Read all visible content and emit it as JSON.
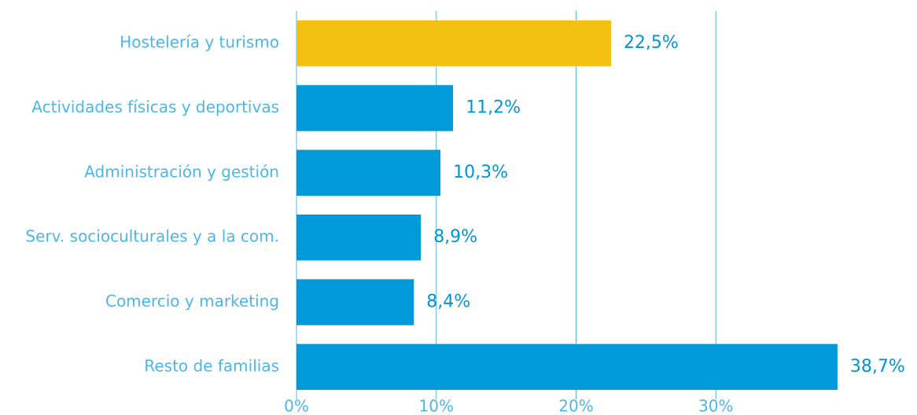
{
  "chart_data": {
    "type": "bar",
    "orientation": "horizontal",
    "categories": [
      "Hostelería y turismo",
      "Actividades físicas y deportivas",
      "Administración y gestión",
      "Serv. socioculturales y a la com.",
      "Comercio y marketing",
      "Resto de familias"
    ],
    "values": [
      22.5,
      11.2,
      10.3,
      8.9,
      8.4,
      38.7
    ],
    "value_labels": [
      "22,5%",
      "11,2%",
      "10,3%",
      "8,9%",
      "8,4%",
      "38,7%"
    ],
    "colors": [
      "#f4c012",
      "#009ada",
      "#009ada",
      "#009ada",
      "#009ada",
      "#009ada"
    ],
    "xlim": [
      0,
      40
    ],
    "xticks": [
      {
        "value": 0,
        "label": "0%"
      },
      {
        "value": 10,
        "label": "10%"
      },
      {
        "value": 20,
        "label": "20%"
      },
      {
        "value": 30,
        "label": "30%"
      }
    ],
    "grid": true
  }
}
